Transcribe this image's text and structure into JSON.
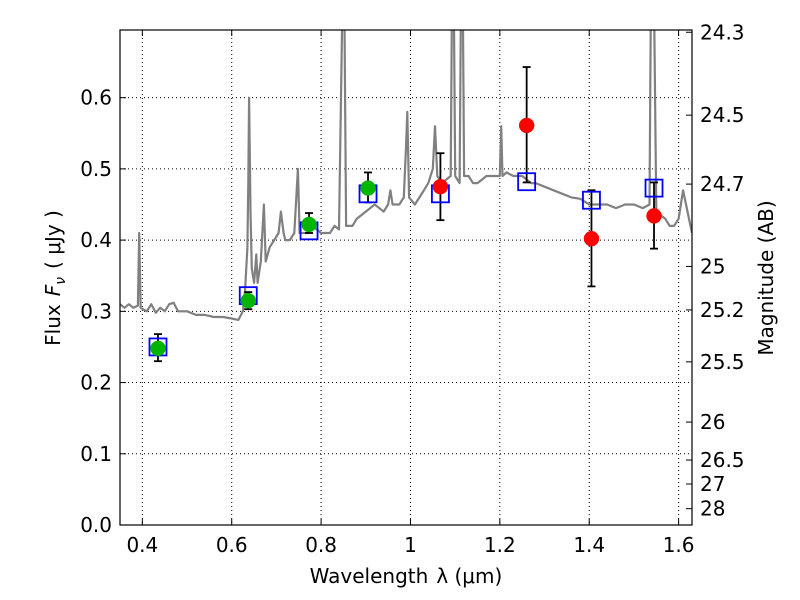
{
  "chart_data": {
    "type": "scatter",
    "xlabel_text": "Wavelength",
    "xlabel_math": "λ (μm)",
    "ylabel_text": "Flux",
    "ylabel_math": "( μJy )",
    "ylabel_math_symbol": "F",
    "ylabel_math_sub": "ν",
    "y2label": "Magnitude (AB)",
    "xlim": [
      0.35,
      1.63
    ],
    "ylim": [
      0.0,
      0.695
    ],
    "grid": true,
    "x_ticks": [
      {
        "value": 0.4,
        "label": "0.4"
      },
      {
        "value": 0.6,
        "label": "0.6"
      },
      {
        "value": 0.8,
        "label": "0.8"
      },
      {
        "value": 1.0,
        "label": "1"
      },
      {
        "value": 1.2,
        "label": "1.2"
      },
      {
        "value": 1.4,
        "label": "1.4"
      },
      {
        "value": 1.6,
        "label": "1.6"
      }
    ],
    "y_ticks": [
      {
        "value": 0.0,
        "label": "0.0"
      },
      {
        "value": 0.1,
        "label": "0.1"
      },
      {
        "value": 0.2,
        "label": "0.2"
      },
      {
        "value": 0.3,
        "label": "0.3"
      },
      {
        "value": 0.4,
        "label": "0.4"
      },
      {
        "value": 0.5,
        "label": "0.5"
      },
      {
        "value": 0.6,
        "label": "0.6"
      }
    ],
    "y2_ticks": [
      {
        "mag": 24.3,
        "label": "24.3"
      },
      {
        "mag": 24.5,
        "label": "24.5"
      },
      {
        "mag": 24.7,
        "label": "24.7"
      },
      {
        "mag": 25.0,
        "label": "25"
      },
      {
        "mag": 25.2,
        "label": "25.2"
      },
      {
        "mag": 25.5,
        "label": "25.5"
      },
      {
        "mag": 26.0,
        "label": "26"
      },
      {
        "mag": 26.5,
        "label": "26.5"
      },
      {
        "mag": 27.0,
        "label": "27"
      },
      {
        "mag": 28.0,
        "label": "28"
      }
    ],
    "template_spectrum": {
      "color": "#808080",
      "points": [
        [
          0.35,
          0.31
        ],
        [
          0.36,
          0.305
        ],
        [
          0.37,
          0.31
        ],
        [
          0.38,
          0.305
        ],
        [
          0.39,
          0.308
        ],
        [
          0.393,
          0.41
        ],
        [
          0.396,
          0.305
        ],
        [
          0.41,
          0.3
        ],
        [
          0.42,
          0.31
        ],
        [
          0.43,
          0.298
        ],
        [
          0.44,
          0.305
        ],
        [
          0.45,
          0.3
        ],
        [
          0.46,
          0.31
        ],
        [
          0.47,
          0.312
        ],
        [
          0.48,
          0.3
        ],
        [
          0.5,
          0.3
        ],
        [
          0.52,
          0.295
        ],
        [
          0.54,
          0.295
        ],
        [
          0.56,
          0.292
        ],
        [
          0.58,
          0.292
        ],
        [
          0.6,
          0.29
        ],
        [
          0.615,
          0.288
        ],
        [
          0.625,
          0.3
        ],
        [
          0.63,
          0.33
        ],
        [
          0.635,
          0.39
        ],
        [
          0.637,
          0.48
        ],
        [
          0.639,
          0.6
        ],
        [
          0.642,
          0.44
        ],
        [
          0.645,
          0.36
        ],
        [
          0.65,
          0.34
        ],
        [
          0.655,
          0.38
        ],
        [
          0.658,
          0.34
        ],
        [
          0.665,
          0.37
        ],
        [
          0.672,
          0.45
        ],
        [
          0.676,
          0.37
        ],
        [
          0.685,
          0.39
        ],
        [
          0.695,
          0.4
        ],
        [
          0.705,
          0.41
        ],
        [
          0.71,
          0.44
        ],
        [
          0.716,
          0.41
        ],
        [
          0.72,
          0.4
        ],
        [
          0.73,
          0.4
        ],
        [
          0.74,
          0.41
        ],
        [
          0.748,
          0.5
        ],
        [
          0.752,
          0.41
        ],
        [
          0.76,
          0.41
        ],
        [
          0.77,
          0.41
        ],
        [
          0.78,
          0.42
        ],
        [
          0.79,
          0.415
        ],
        [
          0.8,
          0.41
        ],
        [
          0.81,
          0.41
        ],
        [
          0.82,
          0.41
        ],
        [
          0.83,
          0.42
        ],
        [
          0.84,
          0.415
        ],
        [
          0.848,
          0.74
        ],
        [
          0.852,
          0.74
        ],
        [
          0.856,
          0.42
        ],
        [
          0.87,
          0.42
        ],
        [
          0.88,
          0.43
        ],
        [
          0.9,
          0.44
        ],
        [
          0.92,
          0.45
        ],
        [
          0.94,
          0.44
        ],
        [
          0.95,
          0.45
        ],
        [
          0.955,
          0.47
        ],
        [
          0.96,
          0.45
        ],
        [
          0.975,
          0.45
        ],
        [
          0.985,
          0.46
        ],
        [
          0.99,
          0.53
        ],
        [
          0.993,
          0.58
        ],
        [
          0.997,
          0.46
        ],
        [
          1.01,
          0.45
        ],
        [
          1.02,
          0.46
        ],
        [
          1.03,
          0.47
        ],
        [
          1.04,
          0.48
        ],
        [
          1.05,
          0.5
        ],
        [
          1.055,
          0.56
        ],
        [
          1.06,
          0.49
        ],
        [
          1.07,
          0.48
        ],
        [
          1.08,
          0.485
        ],
        [
          1.09,
          0.49
        ],
        [
          1.093,
          0.74
        ],
        [
          1.097,
          0.74
        ],
        [
          1.1,
          0.49
        ],
        [
          1.11,
          0.48
        ],
        [
          1.113,
          0.74
        ],
        [
          1.117,
          0.74
        ],
        [
          1.12,
          0.49
        ],
        [
          1.13,
          0.49
        ],
        [
          1.14,
          0.48
        ],
        [
          1.15,
          0.48
        ],
        [
          1.16,
          0.485
        ],
        [
          1.17,
          0.49
        ],
        [
          1.18,
          0.49
        ],
        [
          1.2,
          0.49
        ],
        [
          1.203,
          0.56
        ],
        [
          1.206,
          0.49
        ],
        [
          1.215,
          0.495
        ],
        [
          1.23,
          0.49
        ],
        [
          1.25,
          0.49
        ],
        [
          1.26,
          0.485
        ],
        [
          1.27,
          0.48
        ],
        [
          1.28,
          0.48
        ],
        [
          1.3,
          0.475
        ],
        [
          1.32,
          0.47
        ],
        [
          1.34,
          0.465
        ],
        [
          1.36,
          0.46
        ],
        [
          1.38,
          0.458
        ],
        [
          1.4,
          0.45
        ],
        [
          1.42,
          0.45
        ],
        [
          1.44,
          0.45
        ],
        [
          1.46,
          0.445
        ],
        [
          1.48,
          0.45
        ],
        [
          1.5,
          0.45
        ],
        [
          1.52,
          0.445
        ],
        [
          1.535,
          0.45
        ],
        [
          1.538,
          0.74
        ],
        [
          1.545,
          0.74
        ],
        [
          1.55,
          0.44
        ],
        [
          1.57,
          0.43
        ],
        [
          1.58,
          0.42
        ],
        [
          1.59,
          0.42
        ],
        [
          1.6,
          0.43
        ],
        [
          1.61,
          0.47
        ],
        [
          1.62,
          0.44
        ],
        [
          1.63,
          0.41
        ]
      ]
    },
    "model_points": {
      "marker": "open-square",
      "color": "#0000ff",
      "points": [
        [
          0.435,
          0.25
        ],
        [
          0.637,
          0.322
        ],
        [
          0.773,
          0.413
        ],
        [
          0.905,
          0.465
        ],
        [
          1.067,
          0.465
        ],
        [
          1.26,
          0.482
        ],
        [
          1.405,
          0.456
        ],
        [
          1.545,
          0.473
        ]
      ]
    },
    "observed_green": {
      "marker": "filled-circle",
      "color": "#00b400",
      "points": [
        {
          "x": 0.435,
          "y": 0.248,
          "err_lo": 0.018,
          "err_hi": 0.02
        },
        {
          "x": 0.637,
          "y": 0.315,
          "err_lo": 0.012,
          "err_hi": 0.012
        },
        {
          "x": 0.773,
          "y": 0.422,
          "err_lo": 0.012,
          "err_hi": 0.016
        },
        {
          "x": 0.905,
          "y": 0.473,
          "err_lo": 0.02,
          "err_hi": 0.022
        }
      ]
    },
    "observed_red": {
      "marker": "filled-circle",
      "color": "#ff0000",
      "points": [
        {
          "x": 1.067,
          "y": 0.475,
          "err_lo": 0.047,
          "err_hi": 0.047
        },
        {
          "x": 1.26,
          "y": 0.561,
          "err_lo": 0.08,
          "err_hi": 0.082
        },
        {
          "x": 1.405,
          "y": 0.402,
          "err_lo": 0.067,
          "err_hi": 0.068
        },
        {
          "x": 1.545,
          "y": 0.434,
          "err_lo": 0.046,
          "err_hi": 0.047
        }
      ]
    }
  }
}
